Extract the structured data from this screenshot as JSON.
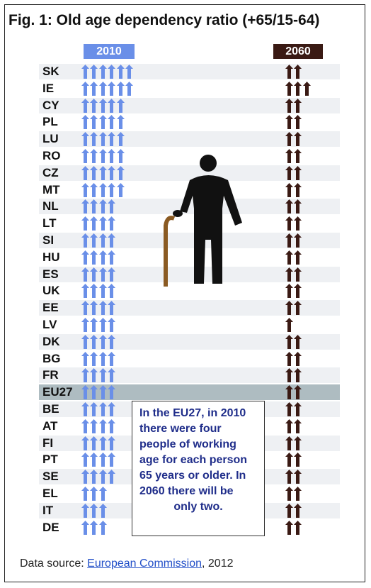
{
  "title": "Fig. 1: Old age dependency ratio (+65/15-64)",
  "colors": {
    "y2010": "#6a8fe8",
    "y2060": "#3a1a14",
    "highlight": "#aebcc1"
  },
  "chart_data": {
    "type": "table",
    "title": "Fig. 1: Old age dependency ratio (+65/15-64)",
    "series": [
      {
        "name": "2010",
        "values": [
          6,
          6,
          5,
          5,
          5,
          5,
          5,
          5,
          4,
          4,
          4,
          4,
          4,
          4,
          4,
          4,
          4,
          4,
          4,
          4,
          4,
          4,
          4,
          4,
          4,
          3,
          3,
          3
        ]
      },
      {
        "name": "2060",
        "values": [
          2,
          3,
          2,
          2,
          2,
          2,
          2,
          2,
          2,
          2,
          2,
          2,
          2,
          2,
          2,
          1,
          2,
          2,
          2,
          2,
          2,
          2,
          2,
          2,
          2,
          2,
          2,
          2
        ]
      }
    ],
    "categories": [
      "SK",
      "IE",
      "CY",
      "PL",
      "LU",
      "RO",
      "CZ",
      "MT",
      "NL",
      "LT",
      "SI",
      "HU",
      "ES",
      "UK",
      "EE",
      "LV",
      "DK",
      "BG",
      "FR",
      "EU27",
      "BE",
      "AT",
      "FI",
      "PT",
      "SE",
      "EL",
      "IT",
      "DE"
    ]
  },
  "highlight_category": "EU27",
  "note_lines": [
    "In the EU27, in 2010",
    "there were four",
    "people of working",
    "age for each person",
    "65 years or older. In",
    "2060 there will be",
    "only two."
  ],
  "source": {
    "prefix": "Data source: ",
    "link": "European Commission",
    "suffix": ", 2012"
  }
}
